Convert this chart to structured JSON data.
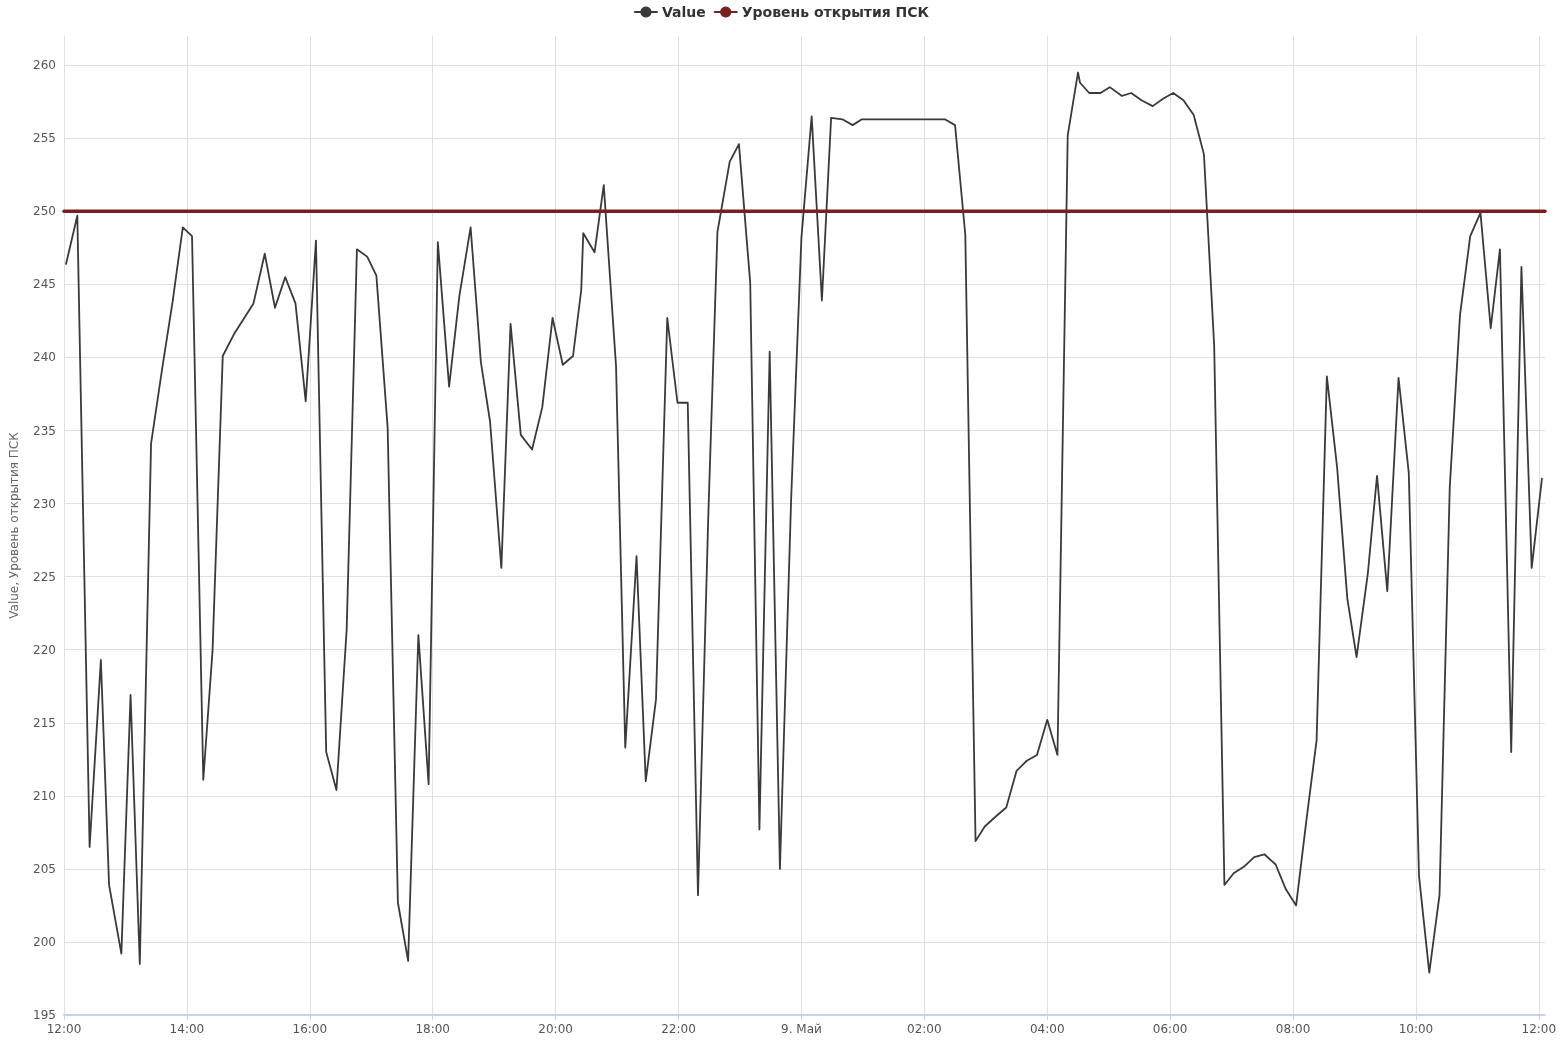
{
  "chart_data": {
    "type": "line",
    "ylabel": "Value, Уровень открытия ПСК",
    "legend": "top",
    "grid": true,
    "marker": "none",
    "line_style": "solid",
    "xlim": [
      "--05-08T12:00",
      "--05-09T12:06"
    ],
    "ylim": [
      195,
      262
    ],
    "xticks": [
      {
        "value": "--05-08T12:00",
        "label": "12:00"
      },
      {
        "value": "--05-08T14:00",
        "label": "14:00"
      },
      {
        "value": "--05-08T16:00",
        "label": "16:00"
      },
      {
        "value": "--05-08T18:00",
        "label": "18:00"
      },
      {
        "value": "--05-08T20:00",
        "label": "20:00"
      },
      {
        "value": "--05-08T22:00",
        "label": "22:00"
      },
      {
        "value": "--05-09T00:00",
        "label": "9. Май"
      },
      {
        "value": "--05-09T02:00",
        "label": "02:00"
      },
      {
        "value": "--05-09T04:00",
        "label": "04:00"
      },
      {
        "value": "--05-09T06:00",
        "label": "06:00"
      },
      {
        "value": "--05-09T08:00",
        "label": "08:00"
      },
      {
        "value": "--05-09T10:00",
        "label": "10:00"
      },
      {
        "value": "--05-09T12:00",
        "label": "12:00"
      }
    ],
    "yticks": [
      195,
      200,
      205,
      210,
      215,
      220,
      225,
      230,
      235,
      240,
      245,
      250,
      255,
      260
    ],
    "series": [
      {
        "name": "Value",
        "color": "#3a3a3a",
        "x": [
          "--05-08T12:02",
          "--05-08T12:13",
          "--05-08T12:25",
          "--05-08T12:36",
          "--05-08T12:44",
          "--05-08T12:56",
          "--05-08T13:05",
          "--05-08T13:14",
          "--05-08T13:25",
          "--05-08T13:36",
          "--05-08T13:46",
          "--05-08T13:56",
          "--05-08T14:05",
          "--05-08T14:16",
          "--05-08T14:25",
          "--05-08T14:35",
          "--05-08T14:46",
          "--05-08T14:56",
          "--05-08T15:05",
          "--05-08T15:16",
          "--05-08T15:26",
          "--05-08T15:36",
          "--05-08T15:46",
          "--05-08T15:56",
          "--05-08T16:06",
          "--05-08T16:16",
          "--05-08T16:26",
          "--05-08T16:36",
          "--05-08T16:46",
          "--05-08T16:56",
          "--05-08T17:05",
          "--05-08T17:16",
          "--05-08T17:26",
          "--05-08T17:36",
          "--05-08T17:46",
          "--05-08T17:56",
          "--05-08T18:05",
          "--05-08T18:16",
          "--05-08T18:26",
          "--05-08T18:37",
          "--05-08T18:47",
          "--05-08T18:56",
          "--05-08T19:07",
          "--05-08T19:16",
          "--05-08T19:26",
          "--05-08T19:37",
          "--05-08T19:47",
          "--05-08T19:57",
          "--05-08T20:07",
          "--05-08T20:17",
          "--05-08T20:25",
          "--05-08T20:27",
          "--05-08T20:38",
          "--05-08T20:47",
          "--05-08T20:59",
          "--05-08T21:08",
          "--05-08T21:19",
          "--05-08T21:28",
          "--05-08T21:38",
          "--05-08T21:49",
          "--05-08T21:59",
          "--05-08T22:09",
          "--05-08T22:19",
          "--05-08T22:29",
          "--05-08T22:38",
          "--05-08T22:50",
          "--05-08T22:59",
          "--05-08T23:10",
          "--05-08T23:19",
          "--05-08T23:29",
          "--05-08T23:39",
          "--05-08T23:50",
          "--05-09T00:00",
          "--05-09T00:10",
          "--05-09T00:20",
          "--05-09T00:29",
          "--05-09T00:40",
          "--05-09T00:50",
          "--05-09T00:59",
          "--05-09T01:10",
          "--05-09T01:30",
          "--05-09T01:50",
          "--05-09T02:10",
          "--05-09T02:20",
          "--05-09T02:30",
          "--05-09T02:40",
          "--05-09T02:50",
          "--05-09T02:59",
          "--05-09T03:10",
          "--05-09T03:20",
          "--05-09T03:30",
          "--05-09T03:40",
          "--05-09T03:50",
          "--05-09T04:00",
          "--05-09T04:10",
          "--05-09T04:20",
          "--05-09T04:30",
          "--05-09T04:32",
          "--05-09T04:41",
          "--05-09T04:52",
          "--05-09T05:01",
          "--05-09T05:13",
          "--05-09T05:22",
          "--05-09T05:32",
          "--05-09T05:43",
          "--05-09T05:53",
          "--05-09T06:03",
          "--05-09T06:13",
          "--05-09T06:23",
          "--05-09T06:33",
          "--05-09T06:43",
          "--05-09T06:53",
          "--05-09T07:02",
          "--05-09T07:13",
          "--05-09T07:22",
          "--05-09T07:32",
          "--05-09T07:43",
          "--05-09T07:53",
          "--05-09T08:03",
          "--05-09T08:13",
          "--05-09T08:23",
          "--05-09T08:33",
          "--05-09T08:43",
          "--05-09T08:53",
          "--05-09T09:02",
          "--05-09T09:13",
          "--05-09T09:22",
          "--05-09T09:32",
          "--05-09T09:43",
          "--05-09T09:53",
          "--05-09T10:03",
          "--05-09T10:13",
          "--05-09T10:23",
          "--05-09T10:33",
          "--05-09T10:43",
          "--05-09T10:53",
          "--05-09T11:03",
          "--05-09T11:13",
          "--05-09T11:22",
          "--05-09T11:33",
          "--05-09T11:43",
          "--05-09T11:53",
          "--05-09T12:03"
        ],
        "values": [
          246.4,
          249.7,
          206.5,
          219.3,
          203.9,
          199.2,
          216.9,
          198.5,
          234.1,
          239.3,
          243.8,
          248.9,
          248.3,
          211.1,
          219.9,
          240.1,
          241.6,
          242.7,
          243.7,
          247.1,
          243.4,
          245.5,
          243.7,
          237,
          248,
          213,
          210.4,
          221.4,
          247.4,
          246.9,
          245.6,
          235.2,
          202.7,
          198.7,
          221,
          210.8,
          247.9,
          238,
          244.2,
          248.9,
          239.7,
          235.6,
          225.6,
          242.3,
          234.7,
          233.7,
          236.6,
          242.7,
          239.5,
          240.1,
          244.6,
          248.5,
          247.2,
          251.8,
          239.4,
          213.3,
          226.4,
          211,
          216.6,
          242.7,
          236.9,
          236.9,
          203.2,
          229,
          248.6,
          253.4,
          254.6,
          245.1,
          207.7,
          240.4,
          205,
          230.4,
          248.2,
          256.5,
          243.9,
          256.4,
          256.3,
          255.9,
          256.3,
          256.3,
          256.3,
          256.3,
          256.3,
          256.3,
          255.9,
          248.4,
          206.9,
          207.9,
          208.6,
          209.2,
          211.7,
          212.4,
          212.8,
          215.2,
          212.8,
          255.2,
          259.5,
          258.8,
          258.1,
          258.1,
          258.5,
          257.9,
          258.1,
          257.6,
          257.2,
          257.7,
          258.1,
          257.6,
          256.6,
          253.9,
          240.8,
          203.9,
          204.7,
          205.2,
          205.8,
          206,
          205.3,
          203.6,
          202.5,
          208.3,
          213.8,
          238.7,
          232.5,
          223.5,
          219.5,
          225.2,
          231.9,
          224,
          238.6,
          232.1,
          204.5,
          197.9,
          203.2,
          231.1,
          242.9,
          248.3,
          249.9,
          242,
          247.4,
          213,
          246.2,
          225.6,
          231.7
        ]
      },
      {
        "name": "Уровень открытия ПСК",
        "color": "#7a1f1f",
        "x": [
          "--05-08T12:00",
          "--05-09T12:06"
        ],
        "values": [
          250,
          250
        ]
      }
    ]
  }
}
